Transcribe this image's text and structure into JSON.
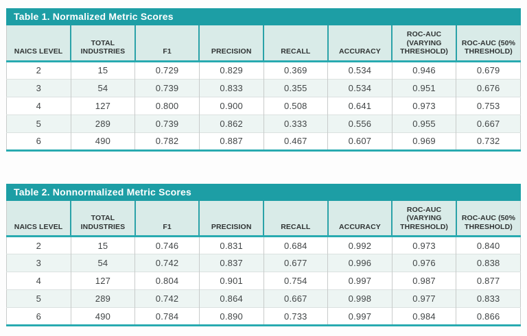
{
  "colors": {
    "title_bar_teal": "#1d9ea5",
    "thick_line_teal": "#28aab0",
    "header_bg": "#d9ebe8",
    "row_alt_bg": "#edf5f3",
    "grid_gray": "#c8cbca",
    "title_text": "#ffffff",
    "body_text": "#414546"
  },
  "chart_data": [
    {
      "type": "table",
      "title": "Table 1. Normalized Metric Scores",
      "columns": [
        "NAICS LEVEL",
        "TOTAL INDUSTRIES",
        "F1",
        "PRECISION",
        "RECALL",
        "ACCURACY",
        "ROC-AUC (VARYING THRESHOLD)",
        "ROC-AUC (50% THRESHOLD)"
      ],
      "rows": [
        [
          "2",
          "15",
          "0.729",
          "0.829",
          "0.369",
          "0.534",
          "0.946",
          "0.679"
        ],
        [
          "3",
          "54",
          "0.739",
          "0.833",
          "0.355",
          "0.534",
          "0.951",
          "0.676"
        ],
        [
          "4",
          "127",
          "0.800",
          "0.900",
          "0.508",
          "0.641",
          "0.973",
          "0.753"
        ],
        [
          "5",
          "289",
          "0.739",
          "0.862",
          "0.333",
          "0.556",
          "0.955",
          "0.667"
        ],
        [
          "6",
          "490",
          "0.782",
          "0.887",
          "0.467",
          "0.607",
          "0.969",
          "0.732"
        ]
      ]
    },
    {
      "type": "table",
      "title": "Table 2. Nonnormalized Metric Scores",
      "columns": [
        "NAICS LEVEL",
        "TOTAL INDUSTRIES",
        "F1",
        "PRECISION",
        "RECALL",
        "ACCURACY",
        "ROC-AUC (VARYING THRESHOLD)",
        "ROC-AUC (50% THRESHOLD)"
      ],
      "rows": [
        [
          "2",
          "15",
          "0.746",
          "0.831",
          "0.684",
          "0.992",
          "0.973",
          "0.840"
        ],
        [
          "3",
          "54",
          "0.742",
          "0.837",
          "0.677",
          "0.996",
          "0.976",
          "0.838"
        ],
        [
          "4",
          "127",
          "0.804",
          "0.901",
          "0.754",
          "0.997",
          "0.987",
          "0.877"
        ],
        [
          "5",
          "289",
          "0.742",
          "0.864",
          "0.667",
          "0.998",
          "0.977",
          "0.833"
        ],
        [
          "6",
          "490",
          "0.784",
          "0.890",
          "0.733",
          "0.997",
          "0.984",
          "0.866"
        ]
      ]
    }
  ]
}
